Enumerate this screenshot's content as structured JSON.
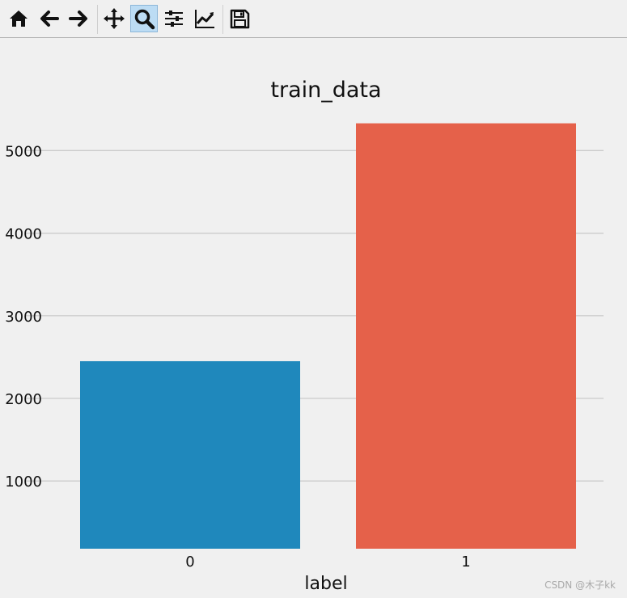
{
  "toolbar": {
    "buttons": [
      {
        "name": "home-icon",
        "active": false
      },
      {
        "name": "back-arrow-icon",
        "active": false
      },
      {
        "name": "forward-arrow-icon",
        "active": false
      },
      {
        "name": "pan-icon",
        "active": false
      },
      {
        "name": "zoom-icon",
        "active": true
      },
      {
        "name": "configure-subplots-icon",
        "active": false
      },
      {
        "name": "edit-axis-icon",
        "active": false
      },
      {
        "name": "save-icon",
        "active": false
      }
    ]
  },
  "chart_data": {
    "type": "bar",
    "title": "train_data",
    "xlabel": "label",
    "ylabel": "",
    "categories": [
      "0",
      "1"
    ],
    "values": [
      2450,
      5330
    ],
    "colors": [
      "#1f88bc",
      "#e5614a"
    ],
    "yticks": [
      1000,
      2000,
      3000,
      4000,
      5000
    ],
    "ylim": [
      180,
      5600
    ],
    "grid": true
  },
  "watermark": "CSDN @木子kk"
}
